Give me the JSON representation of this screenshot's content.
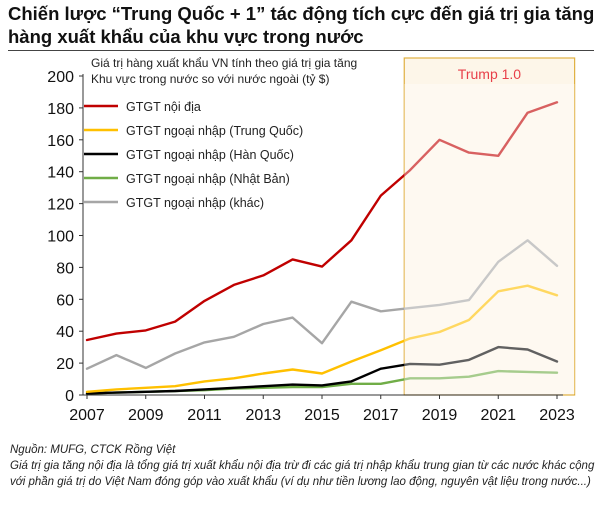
{
  "title": "Chiến lược “Trung Quốc + 1” tác động tích cực đến giá trị gia tăng hàng xuất khẩu của khu vực trong nước",
  "footer": {
    "source": "Nguồn: MUFG, CTCK Rồng Việt",
    "note": "Giá trị gia tăng nội địa là tổng giá trị xuất khẩu nội địa trừ đi các giá trị nhập khẩu trung gian từ các nước khác cộng với phần giá trị do Việt Nam đóng góp vào xuất khẩu (ví dụ như tiền lương lao động, nguyên vật liệu trong nước...)"
  },
  "chart_data": {
    "type": "line",
    "legend_title": [
      "Giá trị hàng xuất khẩu VN tính theo giá trị gia tăng",
      "Khu vực trong nước so với nước ngoài (tỷ $)"
    ],
    "x": [
      2007,
      2008,
      2009,
      2010,
      2011,
      2012,
      2013,
      2014,
      2015,
      2016,
      2017,
      2018,
      2019,
      2020,
      2021,
      2022,
      2023
    ],
    "x_ticks": [
      2007,
      2009,
      2011,
      2013,
      2015,
      2017,
      2019,
      2021,
      2023
    ],
    "y_ticks": [
      0,
      20,
      40,
      60,
      80,
      100,
      120,
      140,
      160,
      180,
      200
    ],
    "ylim": [
      0,
      200
    ],
    "xlim": [
      2007,
      2023
    ],
    "legend_placement": "top-left",
    "highlight": {
      "label": "Trump 1.0",
      "from": 2017.8,
      "to": 2023.6,
      "label_color": "#e8404a",
      "border_color": "#e0b040",
      "fill": "#fdf6e9"
    },
    "series": [
      {
        "name": "GTGT nội địa",
        "color": "#c00000",
        "values": [
          34.5,
          38.5,
          40.5,
          46,
          59,
          69,
          75,
          85,
          80.5,
          97,
          125,
          141,
          160,
          152,
          150,
          177,
          183.5
        ]
      },
      {
        "name": "GTGT ngoại nhập (Trung Quốc)",
        "color": "#ffc000",
        "values": [
          2,
          3.5,
          4.5,
          5.5,
          8.5,
          10.5,
          13.5,
          16,
          13.5,
          21,
          28,
          35.5,
          39.5,
          47,
          65,
          68.5,
          62.5
        ]
      },
      {
        "name": "GTGT ngoại nhập (Hàn Quốc)",
        "color": "#000000",
        "values": [
          1,
          1.5,
          2,
          2.5,
          3.5,
          4.5,
          5.5,
          6.5,
          6,
          8.5,
          16.5,
          19.5,
          19,
          22,
          30,
          28.5,
          21
        ]
      },
      {
        "name": "GTGT ngoại nhập (Nhật Bản)",
        "color": "#70ad47",
        "values": [
          1,
          1.5,
          2,
          2.5,
          3,
          4,
          4.5,
          5,
          5,
          7,
          7,
          10.5,
          10.5,
          11.5,
          15,
          14.5,
          14
        ]
      },
      {
        "name": "GTGT ngoại nhập (khác)",
        "color": "#a6a6a6",
        "values": [
          16.5,
          25,
          17,
          26,
          33,
          36.5,
          44.5,
          48.5,
          32.5,
          58.5,
          52.5,
          54.5,
          56.5,
          59.5,
          83.5,
          97,
          81
        ]
      }
    ]
  }
}
